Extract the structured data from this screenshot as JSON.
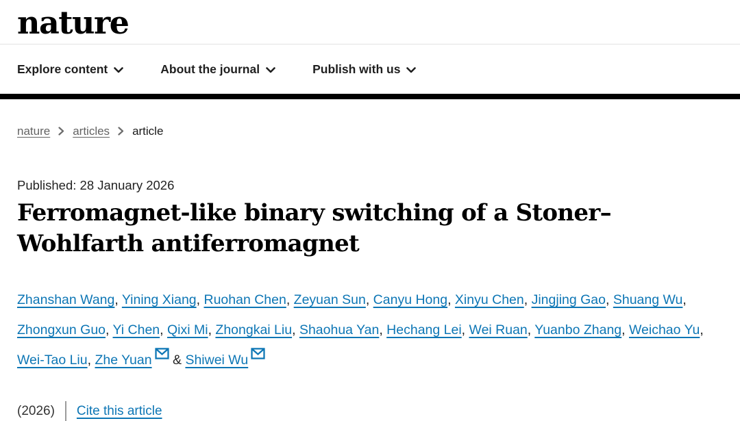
{
  "header": {
    "logo": "nature"
  },
  "nav": {
    "items": [
      {
        "label": "Explore content"
      },
      {
        "label": "About the journal"
      },
      {
        "label": "Publish with us"
      }
    ]
  },
  "breadcrumb": {
    "items": [
      {
        "label": "nature"
      },
      {
        "label": "articles"
      },
      {
        "label": "article"
      }
    ]
  },
  "article": {
    "published": "Published: 28 January 2026",
    "title": "Ferromagnet-like binary switching of a Stoner–Wohlfarth antiferromagnet",
    "authors": [
      {
        "name": "Zhanshan Wang",
        "email": false
      },
      {
        "name": "Yining Xiang",
        "email": false
      },
      {
        "name": "Ruohan Chen",
        "email": false
      },
      {
        "name": "Zeyuan Sun",
        "email": false
      },
      {
        "name": "Canyu Hong",
        "email": false
      },
      {
        "name": "Xinyu Chen",
        "email": false
      },
      {
        "name": "Jingjing Gao",
        "email": false
      },
      {
        "name": "Shuang Wu",
        "email": false
      },
      {
        "name": "Zhongxun Guo",
        "email": false
      },
      {
        "name": "Yi Chen",
        "email": false
      },
      {
        "name": "Qixi Mi",
        "email": false
      },
      {
        "name": "Zhongkai Liu",
        "email": false
      },
      {
        "name": "Shaohua Yan",
        "email": false
      },
      {
        "name": "Hechang Lei",
        "email": false
      },
      {
        "name": "Wei Ruan",
        "email": false
      },
      {
        "name": "Yuanbo Zhang",
        "email": false
      },
      {
        "name": "Weichao Yu",
        "email": false
      },
      {
        "name": "Wei-Tao Liu",
        "email": false
      },
      {
        "name": "Zhe Yuan",
        "email": true
      },
      {
        "name": "Shiwei Wu",
        "email": true
      }
    ],
    "citation": {
      "year": "(2026)",
      "cite_link_label": "Cite this article"
    }
  },
  "colors": {
    "link_blue": "#0d76b5",
    "breadcrumb_gray": "#636363",
    "bar_black": "#000000"
  }
}
